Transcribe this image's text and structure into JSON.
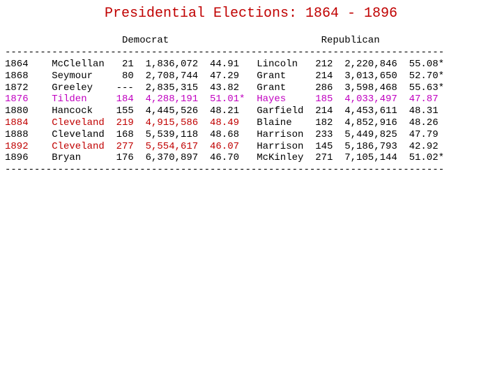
{
  "title": "Presidential Elections: 1864 - 1896",
  "title_color": "#c00000",
  "headers": {
    "democrat": "Democrat",
    "republican": "Republican"
  },
  "top_rule": "---------------------------------------------------------------------------",
  "bottom_rule": "---------------------------------------------------------------------------",
  "rows": [
    {
      "cells": [
        "1864",
        "McClellan",
        "21",
        "1,836,072",
        "44.91",
        "Lincoln",
        "212",
        "2,220,846",
        "55.08*"
      ],
      "dem_color": "#000000",
      "rep_color": "#000000"
    },
    {
      "cells": [
        "1868",
        "Seymour",
        "80",
        "2,708,744",
        "47.29",
        "Grant",
        "214",
        "3,013,650",
        "52.70*"
      ],
      "dem_color": "#000000",
      "rep_color": "#000000"
    },
    {
      "cells": [
        "1872",
        "Greeley",
        "---",
        "2,835,315",
        "43.82",
        "Grant",
        "286",
        "3,598,468",
        "55.63*"
      ],
      "dem_color": "#000000",
      "rep_color": "#000000"
    },
    {
      "cells": [
        "1876",
        "Tilden",
        "184",
        "4,288,191",
        "51.01*",
        "Hayes",
        "185",
        "4,033,497",
        "47.87"
      ],
      "dem_color": "#c000c0",
      "rep_color": "#c000c0"
    },
    {
      "cells": [
        "1880",
        "Hancock",
        "155",
        "4,445,526",
        "48.21",
        "Garfield",
        "214",
        "4,453,611",
        "48.31"
      ],
      "dem_color": "#000000",
      "rep_color": "#000000"
    },
    {
      "cells": [
        "1884",
        "Cleveland",
        "219",
        "4,915,586",
        "48.49",
        "Blaine",
        "182",
        "4,852,916",
        "48.26"
      ],
      "dem_color": "#c00000",
      "rep_color": "#000000"
    },
    {
      "cells": [
        "1888",
        "Cleveland",
        "168",
        "5,539,118",
        "48.68",
        "Harrison",
        "233",
        "5,449,825",
        "47.79"
      ],
      "dem_color": "#000000",
      "rep_color": "#000000"
    },
    {
      "cells": [
        "1892",
        "Cleveland",
        "277",
        "5,554,617",
        "46.07",
        "Harrison",
        "145",
        "5,186,793",
        "42.92"
      ],
      "dem_color": "#c00000",
      "rep_color": "#000000"
    },
    {
      "cells": [
        "1896",
        "Bryan",
        "176",
        "6,370,897",
        "46.70",
        "McKinley",
        "271",
        "7,105,144",
        "51.02*"
      ],
      "dem_color": "#000000",
      "rep_color": "#000000"
    }
  ]
}
